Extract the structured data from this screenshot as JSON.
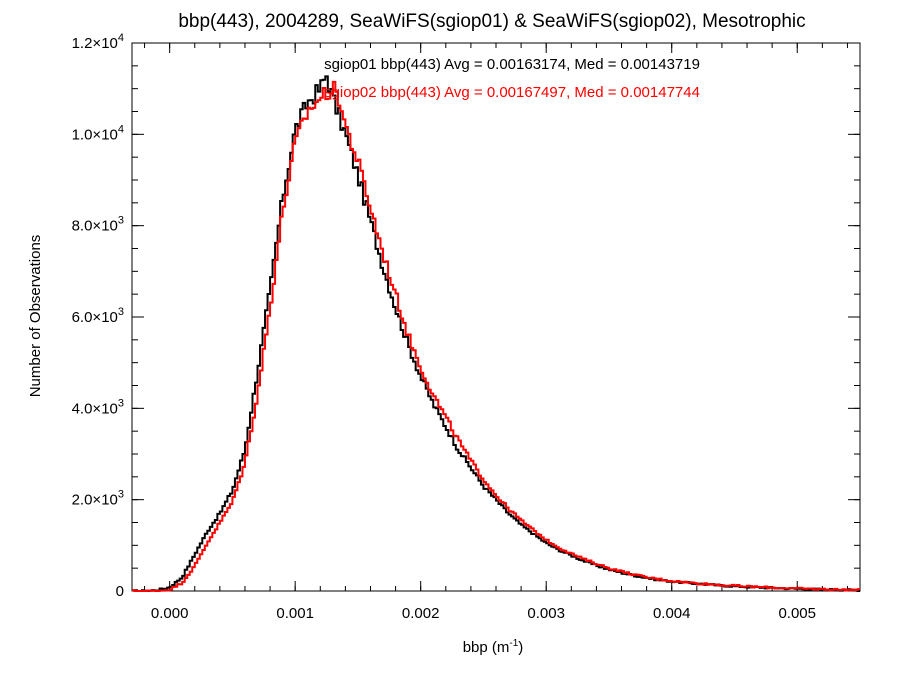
{
  "chart_data": {
    "type": "line",
    "title": "bbp(443), 2004289, SeaWiFS(sgiop01) & SeaWiFS(sgiop02), Mesotrophic",
    "xlabel": {
      "base": "bbp (m",
      "sup": "-1",
      "close": ")"
    },
    "ylabel": "Number of Observations",
    "xlim": [
      -0.0003,
      0.0055
    ],
    "ylim": [
      0,
      12000
    ],
    "grid": false,
    "x_ticks": [
      {
        "value": 0.0,
        "label": "0.000"
      },
      {
        "value": 0.001,
        "label": "0.001"
      },
      {
        "value": 0.002,
        "label": "0.002"
      },
      {
        "value": 0.003,
        "label": "0.003"
      },
      {
        "value": 0.004,
        "label": "0.004"
      },
      {
        "value": 0.005,
        "label": "0.005"
      }
    ],
    "y_ticks": [
      {
        "value": 0,
        "mant": "0",
        "exp": ""
      },
      {
        "value": 2000,
        "mant": "2.0×10",
        "exp": "3"
      },
      {
        "value": 4000,
        "mant": "4.0×10",
        "exp": "3"
      },
      {
        "value": 6000,
        "mant": "6.0×10",
        "exp": "3"
      },
      {
        "value": 8000,
        "mant": "8.0×10",
        "exp": "3"
      },
      {
        "value": 10000,
        "mant": "1.0×10",
        "exp": "4"
      },
      {
        "value": 12000,
        "mant": "1.2×10",
        "exp": "4"
      }
    ],
    "x_minor_step": 0.0002,
    "y_minor_step": 500,
    "annotations": [
      "sgiop01 bbp(443) Avg = 0.00163174, Med = 0.00143719",
      "sgiop02 bbp(443) Avg = 0.00167497, Med = 0.00147744"
    ],
    "series": [
      {
        "color": "#000000",
        "x": [
          -0.0003,
          -0.0002,
          -0.0001,
          0.0,
          0.0001,
          0.0002,
          0.0003,
          0.0004,
          0.0005,
          0.0006,
          0.0007,
          0.0008,
          0.0009,
          0.001,
          0.0011,
          0.0012,
          0.00125,
          0.0013,
          0.0014,
          0.0015,
          0.0016,
          0.0017,
          0.0018,
          0.0019,
          0.002,
          0.0021,
          0.0022,
          0.0023,
          0.0024,
          0.0025,
          0.0026,
          0.0027,
          0.0028,
          0.0029,
          0.003,
          0.0031,
          0.0032,
          0.0033,
          0.0034,
          0.0035,
          0.0036,
          0.0037,
          0.0038,
          0.0039,
          0.004,
          0.0042,
          0.0044,
          0.0046,
          0.0048,
          0.005,
          0.0052,
          0.0055
        ],
        "y": [
          0,
          0,
          20,
          80,
          300,
          800,
          1300,
          1700,
          2200,
          3100,
          4800,
          6600,
          8600,
          10100,
          10700,
          11000,
          11300,
          10800,
          10000,
          9100,
          8100,
          7100,
          6200,
          5400,
          4700,
          4100,
          3600,
          3100,
          2700,
          2300,
          2000,
          1700,
          1450,
          1250,
          1050,
          900,
          780,
          660,
          560,
          470,
          400,
          340,
          290,
          240,
          210,
          160,
          120,
          90,
          70,
          50,
          35,
          20
        ]
      },
      {
        "color": "#ff0000",
        "x": [
          -0.0003,
          -0.0002,
          -0.0001,
          0.0,
          0.0001,
          0.0002,
          0.0003,
          0.0004,
          0.0005,
          0.0006,
          0.0007,
          0.0008,
          0.0009,
          0.001,
          0.0011,
          0.0012,
          0.0013,
          0.00135,
          0.0014,
          0.0015,
          0.0016,
          0.0017,
          0.0018,
          0.0019,
          0.002,
          0.0021,
          0.0022,
          0.0023,
          0.0024,
          0.0025,
          0.0026,
          0.0027,
          0.0028,
          0.0029,
          0.003,
          0.0031,
          0.0032,
          0.0033,
          0.0034,
          0.0035,
          0.0036,
          0.0037,
          0.0038,
          0.0039,
          0.004,
          0.0042,
          0.0044,
          0.0046,
          0.0048,
          0.005,
          0.0052,
          0.0055
        ],
        "y": [
          0,
          0,
          0,
          30,
          180,
          550,
          1050,
          1500,
          1950,
          2800,
          4300,
          6200,
          8300,
          9800,
          10500,
          10800,
          11000,
          10800,
          10200,
          9400,
          8400,
          7400,
          6500,
          5600,
          4900,
          4300,
          3800,
          3300,
          2850,
          2450,
          2100,
          1800,
          1550,
          1330,
          1120,
          950,
          820,
          700,
          600,
          500,
          430,
          360,
          300,
          260,
          220,
          170,
          130,
          100,
          75,
          55,
          38,
          22
        ]
      }
    ]
  }
}
